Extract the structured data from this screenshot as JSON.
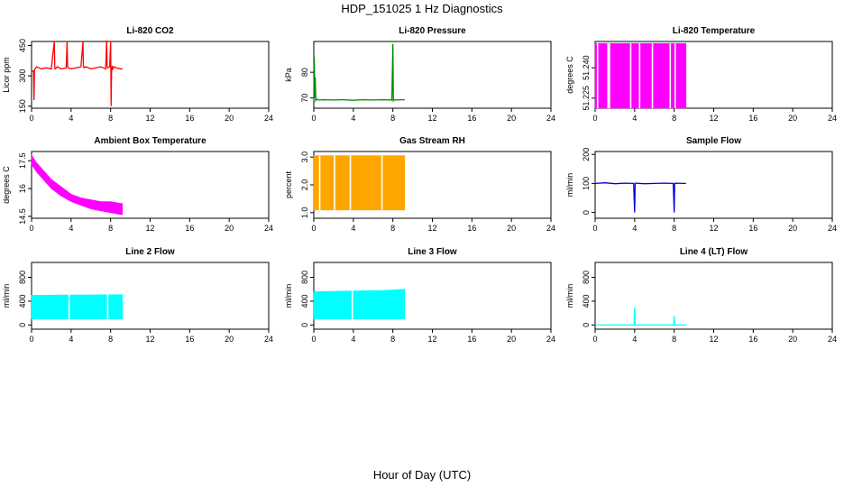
{
  "figure": {
    "title": "HDP_151025  1 Hz Diagnostics",
    "xlabel": "Hour of Day (UTC)"
  },
  "chart_data": [
    {
      "type": "line",
      "title": "Li-820 CO2",
      "ylabel": "Licor ppm",
      "color": "#ff0000",
      "xlim": [
        0,
        24
      ],
      "xticks": [
        0,
        4,
        8,
        12,
        16,
        20,
        24
      ],
      "ylim": [
        140,
        470
      ],
      "yticks": [
        150,
        300,
        450
      ],
      "x": [
        0,
        0.2,
        0.25,
        0.3,
        0.5,
        1,
        1.5,
        2,
        2.3,
        2.35,
        2.4,
        2.6,
        3,
        3.5,
        3.6,
        3.65,
        3.7,
        4,
        4.5,
        5,
        5.2,
        5.25,
        5.3,
        5.5,
        6,
        6.5,
        7,
        7.5,
        7.6,
        7.65,
        7.7,
        7.9,
        8.0,
        8.05,
        8.1,
        8.15,
        8.2,
        8.3,
        8.6,
        9.0,
        9.2
      ],
      "y": [
        320,
        325,
        180,
        330,
        345,
        335,
        340,
        335,
        470,
        340,
        335,
        345,
        335,
        340,
        470,
        345,
        340,
        335,
        340,
        345,
        470,
        350,
        340,
        345,
        335,
        340,
        345,
        335,
        475,
        350,
        340,
        345,
        470,
        150,
        340,
        345,
        330,
        345,
        340,
        335,
        335
      ]
    },
    {
      "type": "line",
      "title": "Li-820 Pressure",
      "ylabel": "kPa",
      "color": "#008800",
      "xlim": [
        0,
        24
      ],
      "xticks": [
        0,
        4,
        8,
        12,
        16,
        20,
        24
      ],
      "ylim": [
        66,
        92
      ],
      "yticks": [
        70,
        80
      ],
      "x": [
        0,
        0.05,
        0.1,
        0.15,
        0.2,
        0.3,
        0.5,
        1,
        2,
        3,
        4,
        5,
        6,
        7,
        7.9,
        8.0,
        8.05,
        8.1,
        8.2,
        9.0,
        9.2
      ],
      "y": [
        69,
        86,
        70,
        78,
        69,
        69.5,
        69.2,
        69.3,
        69.2,
        69.3,
        69.1,
        69.3,
        69.2,
        69.3,
        69.2,
        91,
        69,
        69.3,
        69.2,
        69.3,
        69.3
      ]
    },
    {
      "type": "band",
      "title": "Li-820 Temperature",
      "ylabel": "degrees C",
      "color": "#ff00ff",
      "xlim": [
        0,
        24
      ],
      "xticks": [
        0,
        4,
        8,
        12,
        16,
        20,
        24
      ],
      "ylim": [
        51.22,
        51.253
      ],
      "yticks": [
        51.225,
        51.24
      ],
      "ytick_labels": [
        "51.225",
        "51.240"
      ],
      "x": [
        0,
        9.2
      ],
      "low": [
        51.22,
        51.22
      ],
      "high": [
        51.252,
        51.252
      ],
      "gaps": [
        0.25,
        1.3,
        1.45,
        3.6,
        4.5,
        5.8,
        7.6,
        8.1
      ]
    },
    {
      "type": "band",
      "title": "Ambient Box Temperature",
      "ylabel": "degrees C",
      "color": "#ff00ff",
      "xlim": [
        0,
        24
      ],
      "xticks": [
        0,
        4,
        8,
        12,
        16,
        20,
        24
      ],
      "ylim": [
        14.4,
        18.0
      ],
      "yticks": [
        14.5,
        16.0,
        17.5
      ],
      "x": [
        0,
        0.5,
        1,
        2,
        3,
        4,
        5,
        6,
        7,
        8,
        9,
        9.2
      ],
      "low": [
        17.3,
        16.9,
        16.6,
        16.0,
        15.6,
        15.3,
        15.1,
        14.9,
        14.8,
        14.7,
        14.6,
        14.6
      ],
      "high": [
        17.8,
        17.4,
        17.1,
        16.5,
        16.1,
        15.7,
        15.5,
        15.4,
        15.3,
        15.3,
        15.2,
        15.2
      ],
      "gaps": []
    },
    {
      "type": "band",
      "title": "Gas Stream RH",
      "ylabel": "percent",
      "color": "#ffa500",
      "xlim": [
        0,
        24
      ],
      "xticks": [
        0,
        4,
        8,
        12,
        16,
        20,
        24
      ],
      "ylim": [
        0.8,
        3.2
      ],
      "yticks": [
        1.0,
        2.0,
        3.0
      ],
      "ytick_labels": [
        "1.0",
        "2.0",
        "3.0"
      ],
      "x": [
        0,
        9.2
      ],
      "low": [
        1.1,
        1.1
      ],
      "high": [
        3.05,
        3.05
      ],
      "gaps": [
        0.6,
        2.1,
        3.7,
        6.9
      ]
    },
    {
      "type": "line",
      "title": "Sample Flow",
      "ylabel": "ml/min",
      "color": "#0000dd",
      "xlim": [
        0,
        24
      ],
      "xticks": [
        0,
        4,
        8,
        12,
        16,
        20,
        24
      ],
      "ylim": [
        -20,
        210
      ],
      "yticks": [
        0,
        100,
        200
      ],
      "x": [
        0,
        1,
        2,
        3,
        3.9,
        4.0,
        4.05,
        4.1,
        5,
        6,
        7,
        7.9,
        8.0,
        8.05,
        8.1,
        9.0,
        9.2
      ],
      "y": [
        100,
        102,
        99,
        101,
        100,
        0,
        100,
        101,
        99,
        100,
        101,
        100,
        0,
        100,
        101,
        100,
        100
      ]
    },
    {
      "type": "band",
      "title": "Line 2 Flow",
      "ylabel": "ml/min",
      "color": "#00ffff",
      "xlim": [
        0,
        24
      ],
      "xticks": [
        0,
        4,
        8,
        12,
        16,
        20,
        24
      ],
      "ylim": [
        -70,
        1050
      ],
      "yticks": [
        0,
        400,
        800
      ],
      "x": [
        0,
        9.2
      ],
      "low": [
        100,
        100
      ],
      "high": [
        500,
        510
      ],
      "gaps": [
        3.8,
        7.7
      ]
    },
    {
      "type": "band",
      "title": "Line 3 Flow",
      "ylabel": "ml/min",
      "color": "#00ffff",
      "xlim": [
        0,
        24
      ],
      "xticks": [
        0,
        4,
        8,
        12,
        16,
        20,
        24
      ],
      "ylim": [
        -70,
        1050
      ],
      "yticks": [
        0,
        400,
        800
      ],
      "x": [
        0,
        7,
        9.2
      ],
      "low": [
        100,
        100,
        100
      ],
      "high": [
        560,
        580,
        600
      ],
      "gaps": [
        3.9
      ]
    },
    {
      "type": "line",
      "title": "Line 4 (LT) Flow",
      "ylabel": "ml/min",
      "color": "#00ffff",
      "xlim": [
        0,
        24
      ],
      "xticks": [
        0,
        4,
        8,
        12,
        16,
        20,
        24
      ],
      "ylim": [
        -70,
        1050
      ],
      "yticks": [
        0,
        400,
        800
      ],
      "x": [
        0,
        2,
        3.95,
        4.0,
        4.05,
        6,
        7.95,
        8.0,
        8.05,
        9.0,
        9.2
      ],
      "y": [
        0,
        0,
        0,
        300,
        0,
        0,
        0,
        150,
        0,
        0,
        0
      ]
    }
  ]
}
